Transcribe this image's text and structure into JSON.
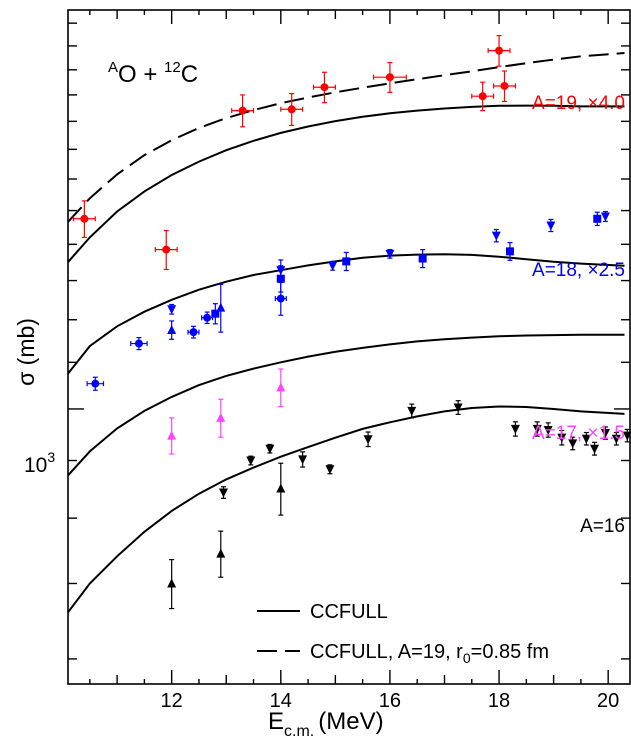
{
  "chart_data": {
    "type": "scatter",
    "title": "",
    "xlabel": "E",
    "xlabel_sub": "c.m.",
    "xlabel_unit": "(MeV)",
    "ylabel": "σ (mb)",
    "xlim": [
      10.1,
      20.4
    ],
    "ylim": [
      570,
      2260
    ],
    "y_scale": "log",
    "x_ticks": [
      12,
      14,
      16,
      18,
      20
    ],
    "y_tick_label": {
      "base": "10",
      "exp": "3",
      "value": 1000
    },
    "reaction": {
      "pre_sup": "A",
      "proj": "O + ",
      "target_sup": "12",
      "target": "C"
    },
    "colors": {
      "A19": "#ff0000",
      "A18": "#0000ff",
      "A17": "#ff44ff",
      "A16": "#000000",
      "curve": "#000000"
    },
    "series": [
      {
        "name": "A=19, ×4.0",
        "color": "#ff0000",
        "marker": "circle",
        "points": [
          {
            "x": 10.4,
            "y": 1475,
            "ex": 0.2,
            "ey": 55
          },
          {
            "x": 11.9,
            "y": 1385,
            "ex": 0.2,
            "ey": 55
          },
          {
            "x": 13.3,
            "y": 1840,
            "ex": 0.2,
            "ey": 60
          },
          {
            "x": 14.2,
            "y": 1845,
            "ex": 0.2,
            "ey": 60
          },
          {
            "x": 14.8,
            "y": 1930,
            "ex": 0.2,
            "ey": 60
          },
          {
            "x": 16.0,
            "y": 1970,
            "ex": 0.3,
            "ey": 60
          },
          {
            "x": 17.7,
            "y": 1895,
            "ex": 0.2,
            "ey": 55
          },
          {
            "x": 18.0,
            "y": 2080,
            "ex": 0.2,
            "ey": 65
          },
          {
            "x": 18.1,
            "y": 1935,
            "ex": 0.2,
            "ey": 60
          }
        ]
      },
      {
        "name": "A=18, ×2.5",
        "color": "#0000ff",
        "marker": "mixed",
        "points": [
          {
            "x": 10.6,
            "y": 1053,
            "ex": 0.15,
            "ey": 14,
            "m": "circle"
          },
          {
            "x": 11.4,
            "y": 1143,
            "ex": 0.15,
            "ey": 14,
            "m": "circle"
          },
          {
            "x": 12.0,
            "y": 1226,
            "ey": 12,
            "m": "tridown"
          },
          {
            "x": 12.0,
            "y": 1175,
            "ey": 22,
            "m": "triup"
          },
          {
            "x": 12.4,
            "y": 1170,
            "ex": 0.1,
            "ey": 14,
            "m": "circle"
          },
          {
            "x": 12.65,
            "y": 1205,
            "ex": 0.1,
            "ey": 14,
            "m": "circle"
          },
          {
            "x": 12.8,
            "y": 1215,
            "ey": 25,
            "m": "square"
          },
          {
            "x": 12.9,
            "y": 1230,
            "ey": 60,
            "m": "triup"
          },
          {
            "x": 14.0,
            "y": 1328,
            "ey": 28,
            "m": "tridown"
          },
          {
            "x": 14.0,
            "y": 1305,
            "ey": 35,
            "m": "square"
          },
          {
            "x": 14.0,
            "y": 1253,
            "ex": 0.1,
            "ey": 42,
            "m": "circle"
          },
          {
            "x": 14.95,
            "y": 1340,
            "ey": 12,
            "m": "tridown"
          },
          {
            "x": 15.2,
            "y": 1352,
            "ey": 25,
            "m": "square"
          },
          {
            "x": 16.0,
            "y": 1373,
            "ey": 12,
            "m": "tridown"
          },
          {
            "x": 16.6,
            "y": 1360,
            "ey": 25,
            "m": "square"
          },
          {
            "x": 17.95,
            "y": 1425,
            "ey": 18,
            "m": "tridown"
          },
          {
            "x": 18.2,
            "y": 1380,
            "ey": 25,
            "m": "square"
          },
          {
            "x": 18.95,
            "y": 1455,
            "ey": 18,
            "m": "tridown"
          },
          {
            "x": 19.8,
            "y": 1475,
            "ey": 20,
            "m": "square"
          },
          {
            "x": 19.95,
            "y": 1482,
            "ey": 15,
            "m": "tridown"
          }
        ]
      },
      {
        "name": "A=17, ×1.5",
        "color": "#ff44ff",
        "marker": "triup",
        "points": [
          {
            "x": 12.0,
            "y": 947,
            "ey": 35
          },
          {
            "x": 12.9,
            "y": 982,
            "ey": 38
          },
          {
            "x": 14.0,
            "y": 1045,
            "ey": 40
          }
        ]
      },
      {
        "name": "A=16",
        "color": "#000000",
        "marker": "mixed",
        "points": [
          {
            "x": 12.0,
            "y": 700,
            "ey": 35,
            "m": "triup"
          },
          {
            "x": 12.9,
            "y": 744,
            "ey": 35,
            "m": "triup"
          },
          {
            "x": 12.95,
            "y": 843,
            "ey": 10,
            "m": "tridown"
          },
          {
            "x": 13.45,
            "y": 900,
            "ey": 8,
            "m": "tridown"
          },
          {
            "x": 13.8,
            "y": 922,
            "ey": 8,
            "m": "tridown"
          },
          {
            "x": 14.0,
            "y": 850,
            "ey": 45,
            "m": "triup"
          },
          {
            "x": 14.4,
            "y": 902,
            "ey": 14,
            "m": "tridown"
          },
          {
            "x": 14.9,
            "y": 884,
            "ey": 8,
            "m": "tridown"
          },
          {
            "x": 15.6,
            "y": 940,
            "ey": 14,
            "m": "tridown"
          },
          {
            "x": 16.4,
            "y": 996,
            "ey": 14,
            "m": "tridown"
          },
          {
            "x": 17.25,
            "y": 1003,
            "ey": 14,
            "m": "tridown"
          },
          {
            "x": 18.3,
            "y": 960,
            "ey": 14,
            "m": "tridown"
          },
          {
            "x": 18.7,
            "y": 960,
            "ey": 14,
            "m": "tridown"
          },
          {
            "x": 18.9,
            "y": 958,
            "ey": 14,
            "m": "tridown"
          },
          {
            "x": 19.15,
            "y": 943,
            "ey": 14,
            "m": "tridown"
          },
          {
            "x": 19.35,
            "y": 932,
            "ey": 12,
            "m": "tridown"
          },
          {
            "x": 19.6,
            "y": 941,
            "ey": 12,
            "m": "tridown"
          },
          {
            "x": 19.75,
            "y": 922,
            "ey": 12,
            "m": "tridown"
          },
          {
            "x": 19.95,
            "y": 952,
            "ey": 12,
            "m": "tridown"
          },
          {
            "x": 20.15,
            "y": 941,
            "ey": 12,
            "m": "tridown"
          },
          {
            "x": 20.35,
            "y": 947,
            "ey": 12,
            "m": "tridown"
          }
        ]
      }
    ],
    "curves": [
      {
        "name": "CCFULL A=19",
        "style": "solid",
        "x": [
          10.1,
          10.5,
          11,
          11.5,
          12,
          12.5,
          13,
          13.5,
          14,
          14.5,
          15,
          15.5,
          16,
          16.5,
          17,
          17.5,
          18,
          18.5,
          19,
          19.5,
          20.3
        ],
        "y": [
          1350,
          1420,
          1497,
          1560,
          1613,
          1658,
          1697,
          1730,
          1758,
          1781,
          1801,
          1817,
          1830,
          1840,
          1848,
          1854,
          1858,
          1859,
          1858,
          1856,
          1856
        ]
      },
      {
        "name": "CCFULL, A=19, r0=0.85 fm",
        "style": "dashed",
        "x": [
          10.1,
          10.5,
          11,
          11.5,
          12,
          12.5,
          13,
          13.5,
          14,
          14.5,
          15,
          15.5,
          16,
          16.5,
          17,
          17.5,
          18,
          18.5,
          19,
          19.5,
          20.3
        ],
        "y": [
          1466,
          1538,
          1615,
          1680,
          1732,
          1776,
          1812,
          1842,
          1868,
          1890,
          1910,
          1928,
          1945,
          1962,
          1978,
          1994,
          2011,
          2027,
          2042,
          2056,
          2070
        ]
      },
      {
        "name": "CCFULL A=18",
        "style": "solid",
        "x": [
          10.1,
          10.5,
          11,
          11.5,
          12,
          12.5,
          13,
          13.5,
          14,
          14.5,
          15,
          15.5,
          16,
          16.5,
          17,
          17.5,
          18,
          18.5,
          19,
          19.5,
          20.3
        ],
        "y": [
          1075,
          1137,
          1184,
          1220,
          1250,
          1276,
          1297,
          1315,
          1328,
          1341,
          1352,
          1362,
          1368,
          1371,
          1372,
          1370,
          1365,
          1358,
          1351,
          1346,
          1340
        ]
      },
      {
        "name": "CCFULL A=17",
        "style": "solid",
        "x": [
          10.1,
          10.5,
          11,
          11.5,
          12,
          12.5,
          13,
          13.5,
          14,
          14.5,
          15,
          15.5,
          16,
          16.5,
          17,
          17.5,
          18,
          18.5,
          19,
          19.5,
          20.3
        ],
        "y": [
          873,
          917,
          961,
          996,
          1025,
          1050,
          1070,
          1086,
          1100,
          1113,
          1124,
          1133,
          1141,
          1148,
          1153,
          1157,
          1160,
          1162,
          1163,
          1164,
          1164
        ]
      },
      {
        "name": "CCFULL A=16",
        "style": "solid",
        "x": [
          10.1,
          10.5,
          11,
          11.5,
          12,
          12.5,
          13,
          13.5,
          14,
          14.5,
          15,
          15.5,
          16,
          16.5,
          17,
          17.5,
          18,
          18.5,
          19,
          19.5,
          20.3
        ],
        "y": [
          660,
          700,
          740,
          778,
          812,
          841,
          866,
          887,
          907,
          925,
          943,
          960,
          973,
          985,
          995,
          1002,
          1005,
          1004,
          1000,
          995,
          990
        ]
      }
    ],
    "legend": {
      "position": "bottom-right",
      "entries": [
        {
          "label": "CCFULL",
          "style": "solid"
        },
        {
          "pre": "CCFULL, A=19, r",
          "sub": "0",
          "post": "=0.85 fm",
          "style": "dashed"
        }
      ]
    }
  }
}
